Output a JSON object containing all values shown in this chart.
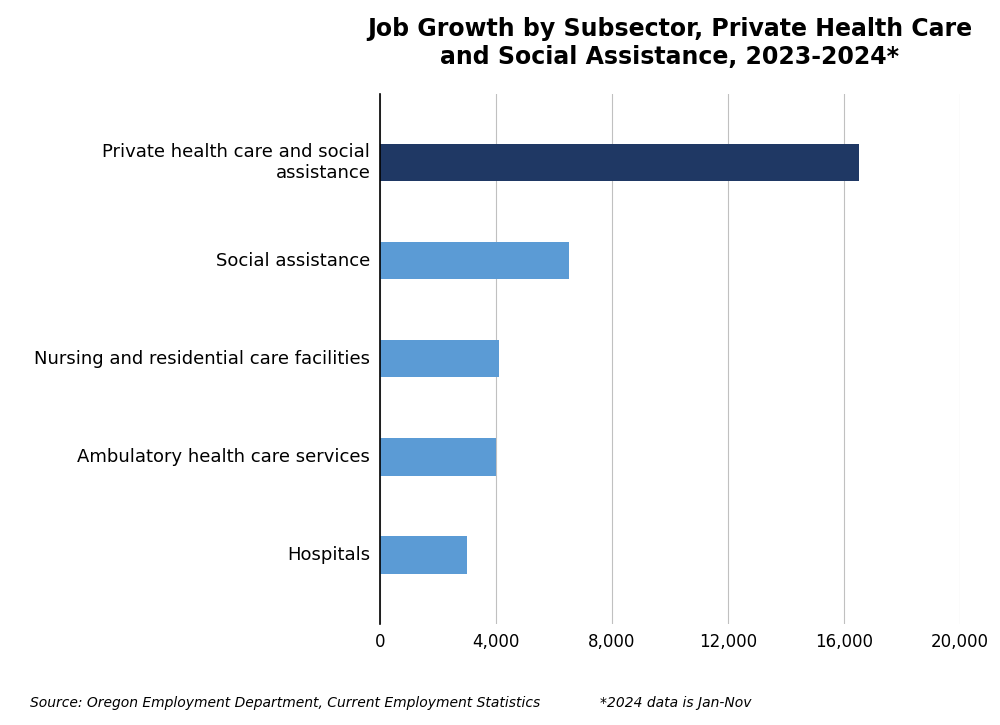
{
  "title": "Job Growth by Subsector, Private Health Care\nand Social Assistance, 2023-2024*",
  "categories": [
    "Hospitals",
    "Ambulatory health care services",
    "Nursing and residential care facilities",
    "Social assistance",
    "Private health care and social\nassistance"
  ],
  "values": [
    3000,
    4000,
    4100,
    6500,
    16500
  ],
  "bar_colors": [
    "#5b9bd5",
    "#5b9bd5",
    "#5b9bd5",
    "#5b9bd5",
    "#1f3864"
  ],
  "xlim": [
    0,
    20000
  ],
  "xticks": [
    0,
    4000,
    8000,
    12000,
    16000,
    20000
  ],
  "xticklabels": [
    "0",
    "4,000",
    "8,000",
    "12,000",
    "16,000",
    "20,000"
  ],
  "title_fontsize": 17,
  "tick_fontsize": 12,
  "label_fontsize": 13,
  "source_text": "Source: Oregon Employment Department, Current Employment Statistics",
  "note_text": "*2024 data is Jan-Nov",
  "background_color": "#ffffff",
  "grid_color": "#c0c0c0",
  "bar_height": 0.38
}
